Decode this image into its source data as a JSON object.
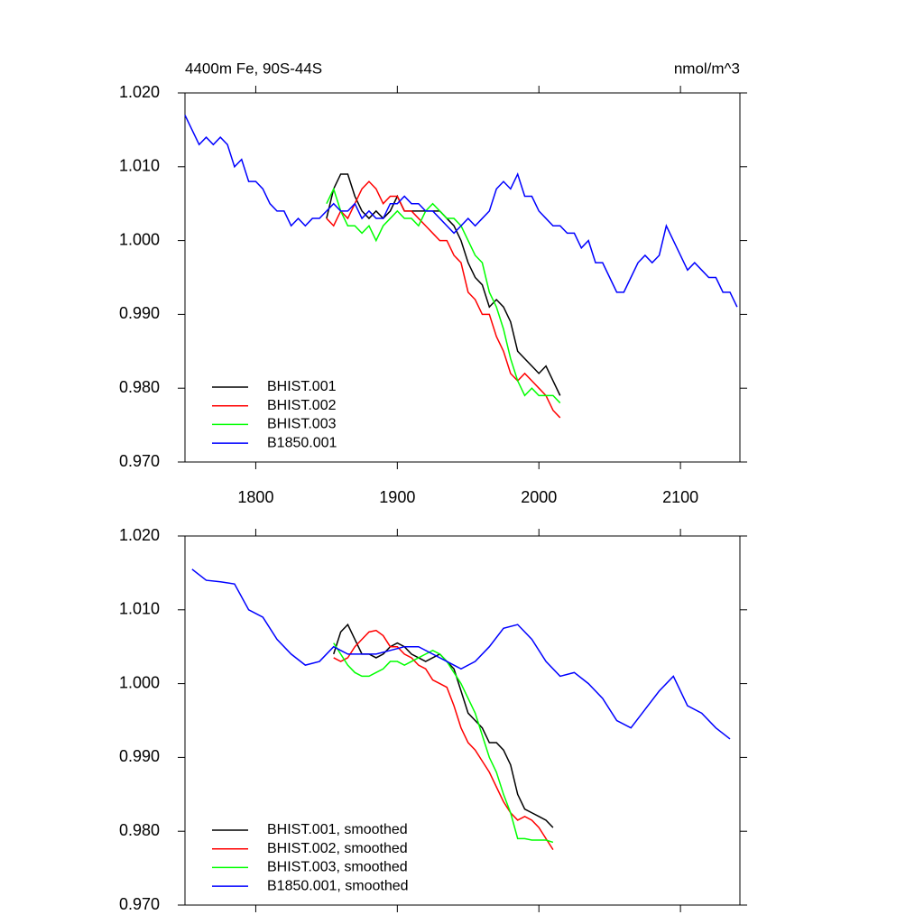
{
  "chart_data": [
    {
      "type": "line",
      "title": "4400m Fe, 90S-44S",
      "subtitle": "nmol/m^3",
      "xlim": [
        1750,
        2142
      ],
      "xticks": [
        1800,
        1900,
        2000,
        2100
      ],
      "ylim": [
        0.97,
        1.02
      ],
      "yticks": [
        {
          "value": 0.97,
          "label": "0.970"
        },
        {
          "value": 0.98,
          "label": "0.980"
        },
        {
          "value": 0.99,
          "label": "0.990"
        },
        {
          "value": 1.0,
          "label": "1.000"
        },
        {
          "value": 1.01,
          "label": "1.010"
        },
        {
          "value": 1.02,
          "label": "1.020"
        }
      ],
      "legend": "lower left",
      "series": [
        {
          "name": "BHIST.001",
          "color": "#000000",
          "x": [
            1850,
            1855,
            1860,
            1865,
            1870,
            1875,
            1880,
            1885,
            1890,
            1895,
            1900,
            1905,
            1910,
            1915,
            1920,
            1925,
            1930,
            1935,
            1940,
            1945,
            1950,
            1955,
            1960,
            1965,
            1970,
            1975,
            1980,
            1985,
            1990,
            1995,
            2000,
            2005,
            2010,
            2015
          ],
          "values": [
            1.003,
            1.007,
            1.009,
            1.009,
            1.006,
            1.004,
            1.003,
            1.004,
            1.003,
            1.004,
            1.006,
            1.004,
            1.004,
            1.004,
            1.004,
            1.004,
            1.004,
            1.003,
            1.002,
            1.0,
            0.997,
            0.995,
            0.994,
            0.991,
            0.992,
            0.991,
            0.989,
            0.985,
            0.984,
            0.983,
            0.982,
            0.983,
            0.981,
            0.979
          ]
        },
        {
          "name": "BHIST.002",
          "color": "#ff0000",
          "x": [
            1850,
            1855,
            1860,
            1865,
            1870,
            1875,
            1880,
            1885,
            1890,
            1895,
            1900,
            1905,
            1910,
            1915,
            1920,
            1925,
            1930,
            1935,
            1940,
            1945,
            1950,
            1955,
            1960,
            1965,
            1970,
            1975,
            1980,
            1985,
            1990,
            1995,
            2000,
            2005,
            2010,
            2015
          ],
          "values": [
            1.003,
            1.002,
            1.004,
            1.003,
            1.005,
            1.007,
            1.008,
            1.007,
            1.005,
            1.006,
            1.006,
            1.004,
            1.004,
            1.003,
            1.002,
            1.001,
            1.0,
            1.0,
            0.998,
            0.997,
            0.993,
            0.992,
            0.99,
            0.99,
            0.987,
            0.985,
            0.982,
            0.981,
            0.982,
            0.981,
            0.98,
            0.979,
            0.977,
            0.976
          ]
        },
        {
          "name": "BHIST.003",
          "color": "#00ff00",
          "x": [
            1850,
            1855,
            1860,
            1865,
            1870,
            1875,
            1880,
            1885,
            1890,
            1895,
            1900,
            1905,
            1910,
            1915,
            1920,
            1925,
            1930,
            1935,
            1940,
            1945,
            1950,
            1955,
            1960,
            1965,
            1970,
            1975,
            1980,
            1985,
            1990,
            1995,
            2000,
            2005,
            2010,
            2015
          ],
          "values": [
            1.005,
            1.007,
            1.004,
            1.002,
            1.002,
            1.001,
            1.002,
            1.0,
            1.002,
            1.003,
            1.004,
            1.003,
            1.003,
            1.002,
            1.004,
            1.005,
            1.004,
            1.003,
            1.003,
            1.002,
            1.0,
            0.998,
            0.997,
            0.993,
            0.991,
            0.988,
            0.984,
            0.981,
            0.979,
            0.98,
            0.979,
            0.979,
            0.979,
            0.978
          ]
        },
        {
          "name": "B1850.001",
          "color": "#0000ff",
          "x": [
            1750,
            1755,
            1760,
            1765,
            1770,
            1775,
            1780,
            1785,
            1790,
            1795,
            1800,
            1805,
            1810,
            1815,
            1820,
            1825,
            1830,
            1835,
            1840,
            1845,
            1850,
            1855,
            1860,
            1865,
            1870,
            1875,
            1880,
            1885,
            1890,
            1895,
            1900,
            1905,
            1910,
            1915,
            1920,
            1925,
            1930,
            1935,
            1940,
            1945,
            1950,
            1955,
            1960,
            1965,
            1970,
            1975,
            1980,
            1985,
            1990,
            1995,
            2000,
            2005,
            2010,
            2015,
            2020,
            2025,
            2030,
            2035,
            2040,
            2045,
            2050,
            2055,
            2060,
            2065,
            2070,
            2075,
            2080,
            2085,
            2090,
            2095,
            2100,
            2105,
            2110,
            2115,
            2120,
            2125,
            2130,
            2135,
            2140
          ],
          "values": [
            1.017,
            1.015,
            1.013,
            1.014,
            1.013,
            1.014,
            1.013,
            1.01,
            1.011,
            1.008,
            1.008,
            1.007,
            1.005,
            1.004,
            1.004,
            1.002,
            1.003,
            1.002,
            1.003,
            1.003,
            1.004,
            1.005,
            1.004,
            1.004,
            1.005,
            1.003,
            1.004,
            1.003,
            1.003,
            1.005,
            1.005,
            1.006,
            1.005,
            1.005,
            1.004,
            1.004,
            1.003,
            1.002,
            1.001,
            1.002,
            1.003,
            1.002,
            1.003,
            1.004,
            1.007,
            1.008,
            1.007,
            1.009,
            1.006,
            1.006,
            1.004,
            1.003,
            1.002,
            1.002,
            1.001,
            1.001,
            0.999,
            1.0,
            0.997,
            0.997,
            0.995,
            0.993,
            0.993,
            0.995,
            0.997,
            0.998,
            0.997,
            0.998,
            1.002,
            1.0,
            0.998,
            0.996,
            0.997,
            0.996,
            0.995,
            0.995,
            0.993,
            0.993,
            0.991
          ]
        }
      ]
    },
    {
      "type": "line",
      "xlim": [
        1750,
        2142
      ],
      "xticks": [
        1800,
        1900,
        2000,
        2100
      ],
      "ylim": [
        0.97,
        1.02
      ],
      "yticks": [
        {
          "value": 0.97,
          "label": "0.970"
        },
        {
          "value": 0.98,
          "label": "0.980"
        },
        {
          "value": 0.99,
          "label": "0.990"
        },
        {
          "value": 1.0,
          "label": "1.000"
        },
        {
          "value": 1.01,
          "label": "1.010"
        },
        {
          "value": 1.02,
          "label": "1.020"
        }
      ],
      "legend": "lower left",
      "series": [
        {
          "name": "BHIST.001, smoothed",
          "color": "#000000",
          "x": [
            1855,
            1860,
            1865,
            1870,
            1875,
            1880,
            1885,
            1890,
            1895,
            1900,
            1905,
            1910,
            1915,
            1920,
            1925,
            1930,
            1935,
            1940,
            1945,
            1950,
            1955,
            1960,
            1965,
            1970,
            1975,
            1980,
            1985,
            1990,
            1995,
            2000,
            2005,
            2010
          ],
          "values": [
            1.004,
            1.007,
            1.008,
            1.006,
            1.004,
            1.004,
            1.0035,
            1.004,
            1.005,
            1.0055,
            1.005,
            1.004,
            1.0035,
            1.003,
            1.0035,
            1.004,
            1.003,
            1.002,
            0.999,
            0.996,
            0.995,
            0.994,
            0.992,
            0.992,
            0.991,
            0.989,
            0.985,
            0.983,
            0.9825,
            0.982,
            0.9815,
            0.9805
          ]
        },
        {
          "name": "BHIST.002, smoothed",
          "color": "#ff0000",
          "x": [
            1855,
            1860,
            1865,
            1870,
            1875,
            1880,
            1885,
            1890,
            1895,
            1900,
            1905,
            1910,
            1915,
            1920,
            1925,
            1930,
            1935,
            1940,
            1945,
            1950,
            1955,
            1960,
            1965,
            1970,
            1975,
            1980,
            1985,
            1990,
            1995,
            2000,
            2005,
            2010
          ],
          "values": [
            1.0035,
            1.003,
            1.0035,
            1.005,
            1.006,
            1.007,
            1.0072,
            1.0065,
            1.005,
            1.005,
            1.004,
            1.0035,
            1.0025,
            1.002,
            1.0005,
            1.0,
            0.9995,
            0.997,
            0.994,
            0.992,
            0.991,
            0.9895,
            0.988,
            0.986,
            0.984,
            0.9825,
            0.9815,
            0.982,
            0.9815,
            0.9805,
            0.979,
            0.9775
          ]
        },
        {
          "name": "BHIST.003, smoothed",
          "color": "#00ff00",
          "x": [
            1855,
            1860,
            1865,
            1870,
            1875,
            1880,
            1885,
            1890,
            1895,
            1900,
            1905,
            1910,
            1915,
            1920,
            1925,
            1930,
            1935,
            1940,
            1945,
            1950,
            1955,
            1960,
            1965,
            1970,
            1975,
            1980,
            1985,
            1990,
            1995,
            2000,
            2005,
            2010
          ],
          "values": [
            1.0055,
            1.004,
            1.0025,
            1.0015,
            1.001,
            1.001,
            1.0015,
            1.002,
            1.003,
            1.003,
            1.0025,
            1.003,
            1.0035,
            1.004,
            1.0045,
            1.004,
            1.003,
            1.0015,
            1.0,
            0.998,
            0.996,
            0.993,
            0.99,
            0.988,
            0.985,
            0.9825,
            0.979,
            0.979,
            0.9788,
            0.9788,
            0.9788,
            0.9785
          ]
        },
        {
          "name": "B1850.001, smoothed",
          "color": "#0000ff",
          "x": [
            1755,
            1765,
            1775,
            1785,
            1795,
            1805,
            1815,
            1825,
            1835,
            1845,
            1855,
            1865,
            1875,
            1885,
            1895,
            1905,
            1915,
            1925,
            1935,
            1945,
            1955,
            1965,
            1975,
            1985,
            1995,
            2005,
            2015,
            2025,
            2035,
            2045,
            2055,
            2065,
            2075,
            2085,
            2095,
            2105,
            2115,
            2125,
            2135
          ],
          "values": [
            1.0155,
            1.014,
            1.0138,
            1.0135,
            1.01,
            1.009,
            1.006,
            1.004,
            1.0025,
            1.003,
            1.005,
            1.004,
            1.004,
            1.004,
            1.0045,
            1.005,
            1.005,
            1.004,
            1.003,
            1.002,
            1.003,
            1.005,
            1.0075,
            1.008,
            1.006,
            1.003,
            1.001,
            1.0015,
            1.0,
            0.998,
            0.995,
            0.994,
            0.9965,
            0.999,
            1.001,
            0.997,
            0.996,
            0.994,
            0.9925
          ]
        }
      ]
    }
  ]
}
